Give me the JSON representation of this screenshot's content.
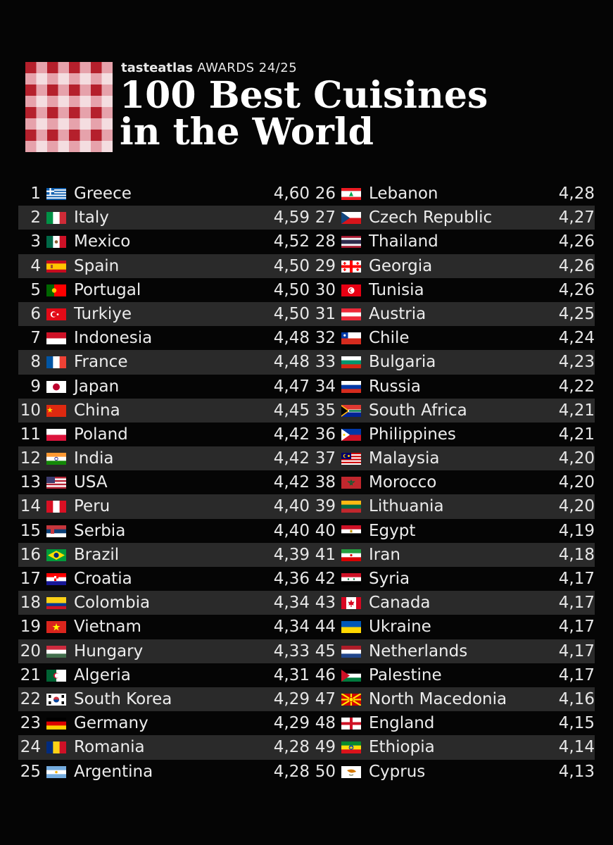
{
  "header": {
    "brand_name": "tasteatlas",
    "brand_awards": "AWARDS 24/25",
    "title_line1": "100 Best Cuisines",
    "title_line2": "in the World"
  },
  "colors": {
    "background": "#050505",
    "row_stripe": "#2a2a2a",
    "checker_red": "#b5202c",
    "checker_pink": "#e6a2ab",
    "checker_light": "#f4dde0"
  },
  "rankings": [
    {
      "rank": "1",
      "name": "Greece",
      "score": "4,60",
      "flag": "greece-flag-icon"
    },
    {
      "rank": "2",
      "name": "Italy",
      "score": "4,59",
      "flag": "italy-flag-icon"
    },
    {
      "rank": "3",
      "name": "Mexico",
      "score": "4,52",
      "flag": "mexico-flag-icon"
    },
    {
      "rank": "4",
      "name": "Spain",
      "score": "4,50",
      "flag": "spain-flag-icon"
    },
    {
      "rank": "5",
      "name": "Portugal",
      "score": "4,50",
      "flag": "portugal-flag-icon"
    },
    {
      "rank": "6",
      "name": "Turkiye",
      "score": "4,50",
      "flag": "turkiye-flag-icon"
    },
    {
      "rank": "7",
      "name": "Indonesia",
      "score": "4,48",
      "flag": "indonesia-flag-icon"
    },
    {
      "rank": "8",
      "name": "France",
      "score": "4,48",
      "flag": "france-flag-icon"
    },
    {
      "rank": "9",
      "name": "Japan",
      "score": "4,47",
      "flag": "japan-flag-icon"
    },
    {
      "rank": "10",
      "name": "China",
      "score": "4,45",
      "flag": "china-flag-icon"
    },
    {
      "rank": "11",
      "name": "Poland",
      "score": "4,42",
      "flag": "poland-flag-icon"
    },
    {
      "rank": "12",
      "name": "India",
      "score": "4,42",
      "flag": "india-flag-icon"
    },
    {
      "rank": "13",
      "name": "USA",
      "score": "4,42",
      "flag": "usa-flag-icon"
    },
    {
      "rank": "14",
      "name": "Peru",
      "score": "4,40",
      "flag": "peru-flag-icon"
    },
    {
      "rank": "15",
      "name": "Serbia",
      "score": "4,40",
      "flag": "serbia-flag-icon"
    },
    {
      "rank": "16",
      "name": "Brazil",
      "score": "4,39",
      "flag": "brazil-flag-icon"
    },
    {
      "rank": "17",
      "name": "Croatia",
      "score": "4,36",
      "flag": "croatia-flag-icon"
    },
    {
      "rank": "18",
      "name": "Colombia",
      "score": "4,34",
      "flag": "colombia-flag-icon"
    },
    {
      "rank": "19",
      "name": "Vietnam",
      "score": "4,34",
      "flag": "vietnam-flag-icon"
    },
    {
      "rank": "20",
      "name": "Hungary",
      "score": "4,33",
      "flag": "hungary-flag-icon"
    },
    {
      "rank": "21",
      "name": "Algeria",
      "score": "4,31",
      "flag": "algeria-flag-icon"
    },
    {
      "rank": "22",
      "name": "South Korea",
      "score": "4,29",
      "flag": "south-korea-flag-icon"
    },
    {
      "rank": "23",
      "name": "Germany",
      "score": "4,29",
      "flag": "germany-flag-icon"
    },
    {
      "rank": "24",
      "name": "Romania",
      "score": "4,28",
      "flag": "romania-flag-icon"
    },
    {
      "rank": "25",
      "name": "Argentina",
      "score": "4,28",
      "flag": "argentina-flag-icon"
    },
    {
      "rank": "26",
      "name": "Lebanon",
      "score": "4,28",
      "flag": "lebanon-flag-icon"
    },
    {
      "rank": "27",
      "name": "Czech Republic",
      "score": "4,27",
      "flag": "czech-republic-flag-icon"
    },
    {
      "rank": "28",
      "name": "Thailand",
      "score": "4,26",
      "flag": "thailand-flag-icon"
    },
    {
      "rank": "29",
      "name": "Georgia",
      "score": "4,26",
      "flag": "georgia-flag-icon"
    },
    {
      "rank": "30",
      "name": "Tunisia",
      "score": "4,26",
      "flag": "tunisia-flag-icon"
    },
    {
      "rank": "31",
      "name": "Austria",
      "score": "4,25",
      "flag": "austria-flag-icon"
    },
    {
      "rank": "32",
      "name": "Chile",
      "score": "4,24",
      "flag": "chile-flag-icon"
    },
    {
      "rank": "33",
      "name": "Bulgaria",
      "score": "4,23",
      "flag": "bulgaria-flag-icon"
    },
    {
      "rank": "34",
      "name": "Russia",
      "score": "4,22",
      "flag": "russia-flag-icon"
    },
    {
      "rank": "35",
      "name": "South Africa",
      "score": "4,21",
      "flag": "south-africa-flag-icon"
    },
    {
      "rank": "36",
      "name": "Philippines",
      "score": "4,21",
      "flag": "philippines-flag-icon"
    },
    {
      "rank": "37",
      "name": "Malaysia",
      "score": "4,20",
      "flag": "malaysia-flag-icon"
    },
    {
      "rank": "38",
      "name": "Morocco",
      "score": "4,20",
      "flag": "morocco-flag-icon"
    },
    {
      "rank": "39",
      "name": "Lithuania",
      "score": "4,20",
      "flag": "lithuania-flag-icon"
    },
    {
      "rank": "40",
      "name": "Egypt",
      "score": "4,19",
      "flag": "egypt-flag-icon"
    },
    {
      "rank": "41",
      "name": "Iran",
      "score": "4,18",
      "flag": "iran-flag-icon"
    },
    {
      "rank": "42",
      "name": "Syria",
      "score": "4,17",
      "flag": "syria-flag-icon"
    },
    {
      "rank": "43",
      "name": "Canada",
      "score": "4,17",
      "flag": "canada-flag-icon"
    },
    {
      "rank": "44",
      "name": "Ukraine",
      "score": "4,17",
      "flag": "ukraine-flag-icon"
    },
    {
      "rank": "45",
      "name": "Netherlands",
      "score": "4,17",
      "flag": "netherlands-flag-icon"
    },
    {
      "rank": "46",
      "name": "Palestine",
      "score": "4,17",
      "flag": "palestine-flag-icon"
    },
    {
      "rank": "47",
      "name": "North Macedonia",
      "score": "4,16",
      "flag": "north-macedonia-flag-icon"
    },
    {
      "rank": "48",
      "name": "England",
      "score": "4,15",
      "flag": "england-flag-icon"
    },
    {
      "rank": "49",
      "name": "Ethiopia",
      "score": "4,14",
      "flag": "ethiopia-flag-icon"
    },
    {
      "rank": "50",
      "name": "Cyprus",
      "score": "4,13",
      "flag": "cyprus-flag-icon"
    }
  ]
}
